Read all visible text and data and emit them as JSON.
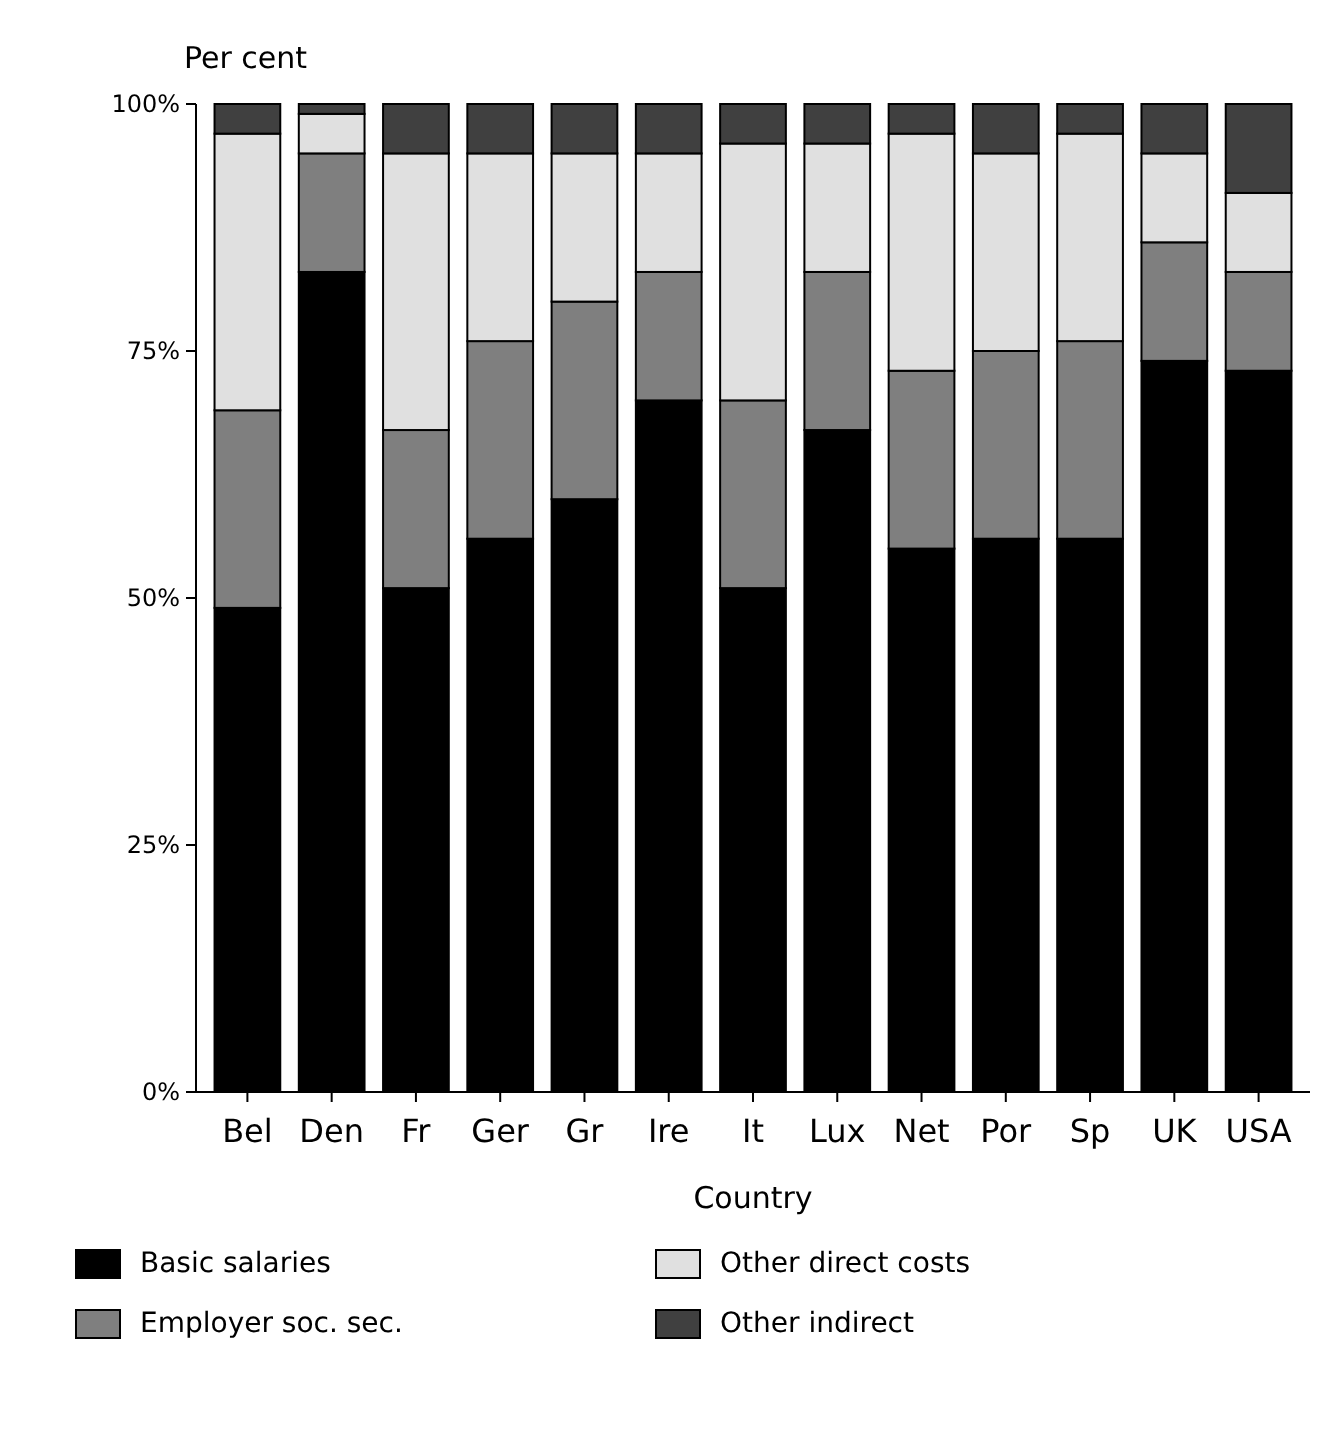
{
  "chart_data": {
    "type": "bar",
    "stacked": true,
    "ylabel": "Per cent",
    "xlabel": "Country",
    "categories": [
      "Bel",
      "Den",
      "Fr",
      "Ger",
      "Gr",
      "Ire",
      "It",
      "Lux",
      "Net",
      "Por",
      "Sp",
      "UK",
      "USA"
    ],
    "series": [
      {
        "name": "Basic salaries",
        "color": "#000000",
        "values": [
          49,
          83,
          51,
          56,
          60,
          70,
          51,
          67,
          55,
          56,
          56,
          74,
          73
        ]
      },
      {
        "name": "Employer soc. sec.",
        "color": "#7f7f7f",
        "values": [
          20,
          12,
          16,
          20,
          20,
          13,
          19,
          16,
          18,
          19,
          20,
          12,
          10
        ]
      },
      {
        "name": "Other direct costs",
        "color": "#e0e0e0",
        "values": [
          28,
          4,
          28,
          19,
          15,
          12,
          26,
          13,
          24,
          20,
          21,
          9,
          8
        ]
      },
      {
        "name": "Other indirect",
        "color": "#404040",
        "values": [
          3,
          1,
          5,
          5,
          5,
          5,
          4,
          4,
          3,
          5,
          3,
          5,
          9
        ]
      }
    ],
    "ylim": [
      0,
      100
    ],
    "yticks": [
      {
        "value": 0,
        "label": "0%"
      },
      {
        "value": 25,
        "label": "25%"
      },
      {
        "value": 50,
        "label": "50%"
      },
      {
        "value": 75,
        "label": "75%"
      },
      {
        "value": 100,
        "label": "100%"
      }
    ],
    "legend": "bottom"
  }
}
